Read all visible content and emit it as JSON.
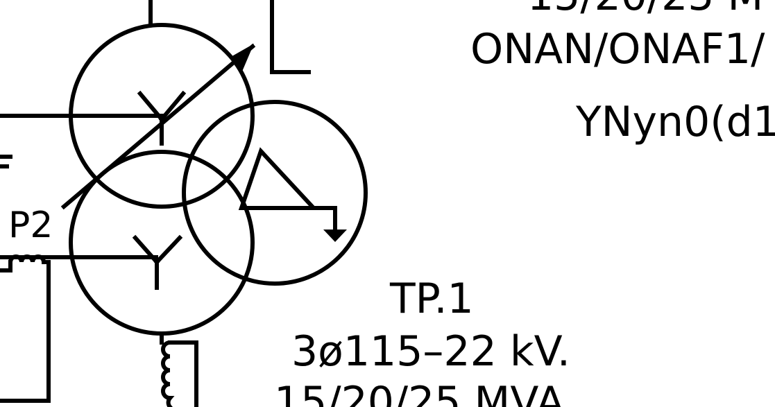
{
  "transformer": {
    "secondary_terminal_label": "P2",
    "winding_primary": "wye",
    "winding_secondary": "wye",
    "winding_tertiary": "delta (grounded)"
  },
  "upper_label": {
    "line_1_partial": "15/20/25 M",
    "line_2_partial": "ONAN/ONAF1/",
    "line_3_partial": "YNyn0(d1"
  },
  "lower_label": {
    "tag": "TP.1",
    "voltage": "3ø115–22 kV.",
    "rating": "15/20/25 MVA."
  }
}
